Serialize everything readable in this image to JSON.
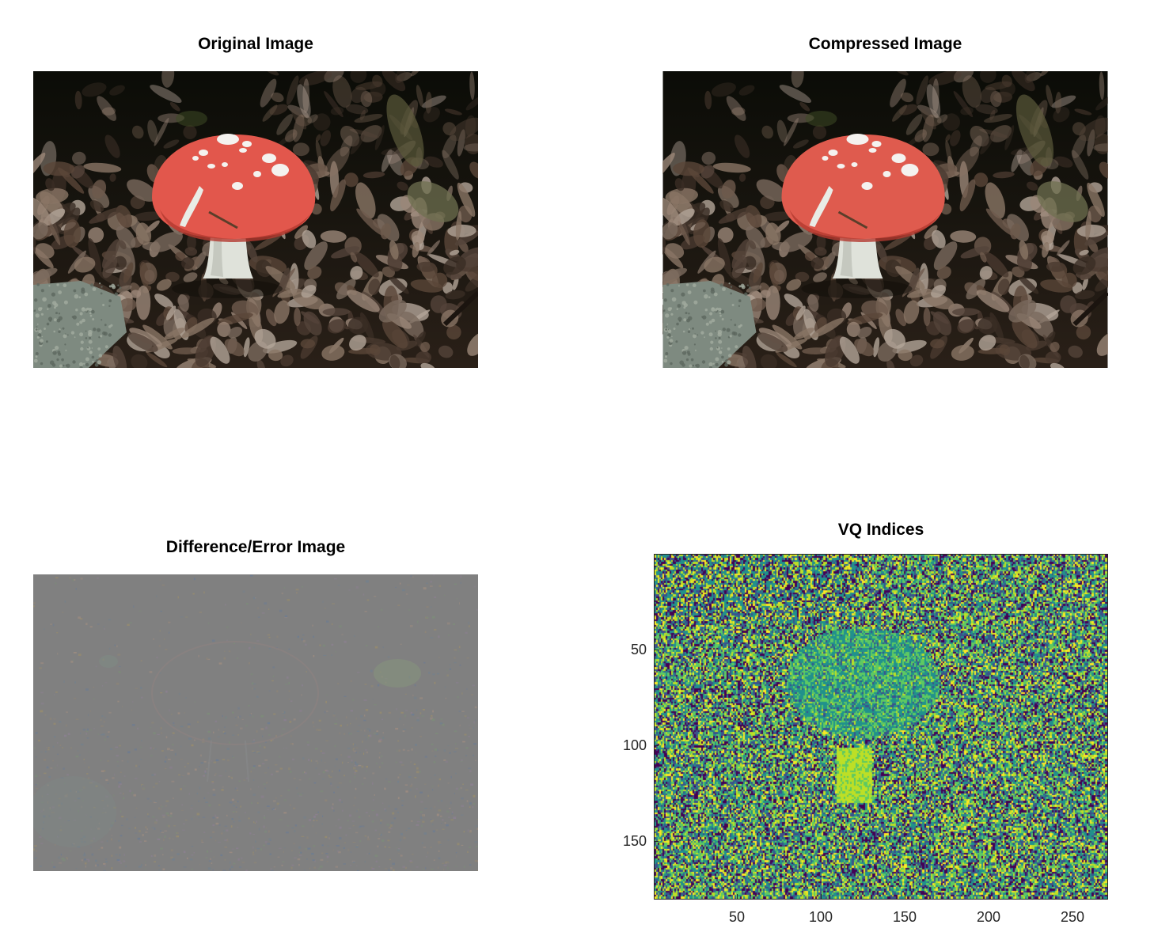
{
  "panels": {
    "original": {
      "title": "Original Image"
    },
    "compressed": {
      "title": "Compressed Image"
    },
    "difference": {
      "title": "Difference/Error Image"
    },
    "vq": {
      "title": "VQ Indices",
      "y_ticks": [
        "50",
        "100",
        "150"
      ],
      "x_ticks": [
        "50",
        "100",
        "150",
        "200",
        "250"
      ],
      "palette": [
        "#440154",
        "#3b528b",
        "#21918c",
        "#5ec962",
        "#bddf26",
        "#fde725"
      ]
    }
  },
  "colors": {
    "mushroom_cap": "#e2574c",
    "leaf_litter": "#6b5547",
    "forest_dark": "#0e0e08",
    "error_gray": "#808080"
  }
}
